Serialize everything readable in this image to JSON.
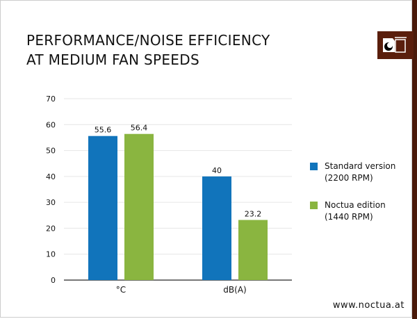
{
  "title_lines": [
    "PERFORMANCE/NOISE EFFICIENCY",
    "AT MEDIUM FAN SPEEDS"
  ],
  "url": "www.noctua.at",
  "logo": "Noctua",
  "colors": {
    "standard": "#1174bb",
    "noctua": "#8ab540",
    "brand": "#5a1e0c"
  },
  "chart_data": {
    "type": "bar",
    "categories": [
      "°C",
      "dB(A)"
    ],
    "series": [
      {
        "name": "Standard version (2200 RPM)",
        "label_lines": [
          "Standard version",
          "(2200 RPM)"
        ],
        "values": [
          55.6,
          40
        ],
        "labels": [
          "55.6",
          "40"
        ]
      },
      {
        "name": "Noctua edition (1440 RPM)",
        "label_lines": [
          "Noctua edition",
          "(1440 RPM)"
        ],
        "values": [
          56.4,
          23.2
        ],
        "labels": [
          "56.4",
          "23.2"
        ]
      }
    ],
    "ylim": [
      0,
      70
    ],
    "yticks": [
      "0",
      "10",
      "20",
      "30",
      "40",
      "50",
      "60",
      "70"
    ],
    "grid": true,
    "legend": "right"
  }
}
